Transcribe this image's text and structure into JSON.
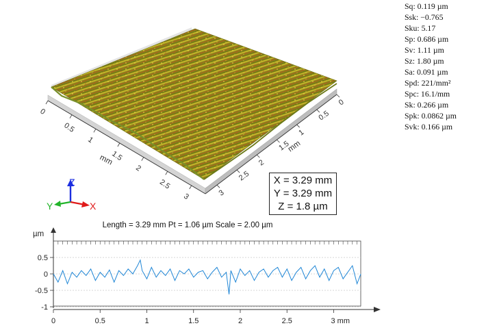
{
  "parameters": [
    "Sq: 0.119 µm",
    "Ssk: −0.765",
    "Sku: 5.17",
    "Sp: 0.686 µm",
    "Sv: 1.11 µm",
    "Sz: 1.80 µm",
    "Sa: 0.091 µm",
    "Spd: 221/mm²",
    "Spc: 16.1/mm",
    "Sk: 0.266 µm",
    "Spk: 0.0862 µm",
    "Svk: 0.166 µm"
  ],
  "surface_view": {
    "left_axis_ticks": [
      "0",
      "0.5",
      "1",
      "1.5",
      "2",
      "2.5",
      "3"
    ],
    "left_axis_unit": "mm",
    "right_axis_ticks": [
      "0",
      "0.5",
      "1",
      "1.5",
      "2",
      "2.5",
      "3"
    ],
    "right_axis_unit": "mm",
    "dimensions": {
      "x": "X = 3.29 mm",
      "y": "Y = 3.29 mm",
      "z": "Z = 1.8 µm"
    },
    "triad": {
      "x": "X",
      "y": "Y",
      "z": "Z"
    },
    "colors": {
      "base": "#8c8a1a",
      "highlight": "#d8c030",
      "valley": "#b04a20"
    }
  },
  "profile": {
    "title": "Length = 3.29 mm  Pt = 1.06 µm  Scale = 2.00 µm",
    "y_unit": "µm",
    "x_unit": "mm",
    "color": "#1f86d6",
    "chart_data": {
      "type": "line",
      "x_range": [
        0,
        3.29
      ],
      "ylim": [
        -1,
        0.5
      ],
      "x_ticks": [
        0,
        0.5,
        1,
        1.5,
        2,
        2.5,
        3
      ],
      "x_tick_labels": [
        "0",
        "0.5",
        "1",
        "1.5",
        "2",
        "2.5",
        "3 mm"
      ],
      "y_ticks": [
        0.5,
        0,
        -0.5,
        -1
      ],
      "y_tick_labels": [
        "0.5",
        "0",
        "-0.5",
        "-1"
      ],
      "grid": true,
      "series": [
        {
          "x": [
            0,
            0.05,
            0.1,
            0.15,
            0.2,
            0.25,
            0.3,
            0.35,
            0.4,
            0.45,
            0.5,
            0.55,
            0.6,
            0.65,
            0.7,
            0.75,
            0.8,
            0.85,
            0.9,
            0.93,
            0.95,
            1.0,
            1.05,
            1.1,
            1.15,
            1.2,
            1.25,
            1.3,
            1.35,
            1.4,
            1.45,
            1.5,
            1.55,
            1.6,
            1.65,
            1.7,
            1.75,
            1.8,
            1.85,
            1.88,
            1.9,
            1.95,
            2.0,
            2.05,
            2.1,
            2.15,
            2.2,
            2.25,
            2.3,
            2.35,
            2.4,
            2.45,
            2.5,
            2.55,
            2.6,
            2.65,
            2.7,
            2.75,
            2.8,
            2.85,
            2.9,
            2.95,
            3.0,
            3.05,
            3.1,
            3.15,
            3.2,
            3.25,
            3.29
          ],
          "y": [
            0.0,
            -0.25,
            0.1,
            -0.3,
            0.05,
            -0.1,
            0.1,
            -0.05,
            0.15,
            -0.2,
            0.05,
            -0.1,
            0.12,
            -0.25,
            0.1,
            -0.05,
            0.15,
            0.0,
            0.25,
            0.42,
            0.1,
            -0.15,
            0.2,
            -0.1,
            0.1,
            -0.05,
            0.15,
            -0.2,
            0.1,
            0.0,
            0.15,
            -0.1,
            0.05,
            0.1,
            -0.15,
            0.05,
            0.2,
            -0.1,
            0.05,
            -0.62,
            0.1,
            -0.25,
            0.15,
            -0.05,
            0.1,
            -0.2,
            0.05,
            0.15,
            -0.1,
            0.1,
            0.2,
            -0.1,
            0.15,
            -0.2,
            0.05,
            0.2,
            -0.15,
            0.1,
            0.25,
            -0.1,
            0.15,
            -0.2,
            0.1,
            0.2,
            -0.15,
            0.05,
            0.25,
            -0.3,
            0.0
          ]
        }
      ]
    }
  }
}
